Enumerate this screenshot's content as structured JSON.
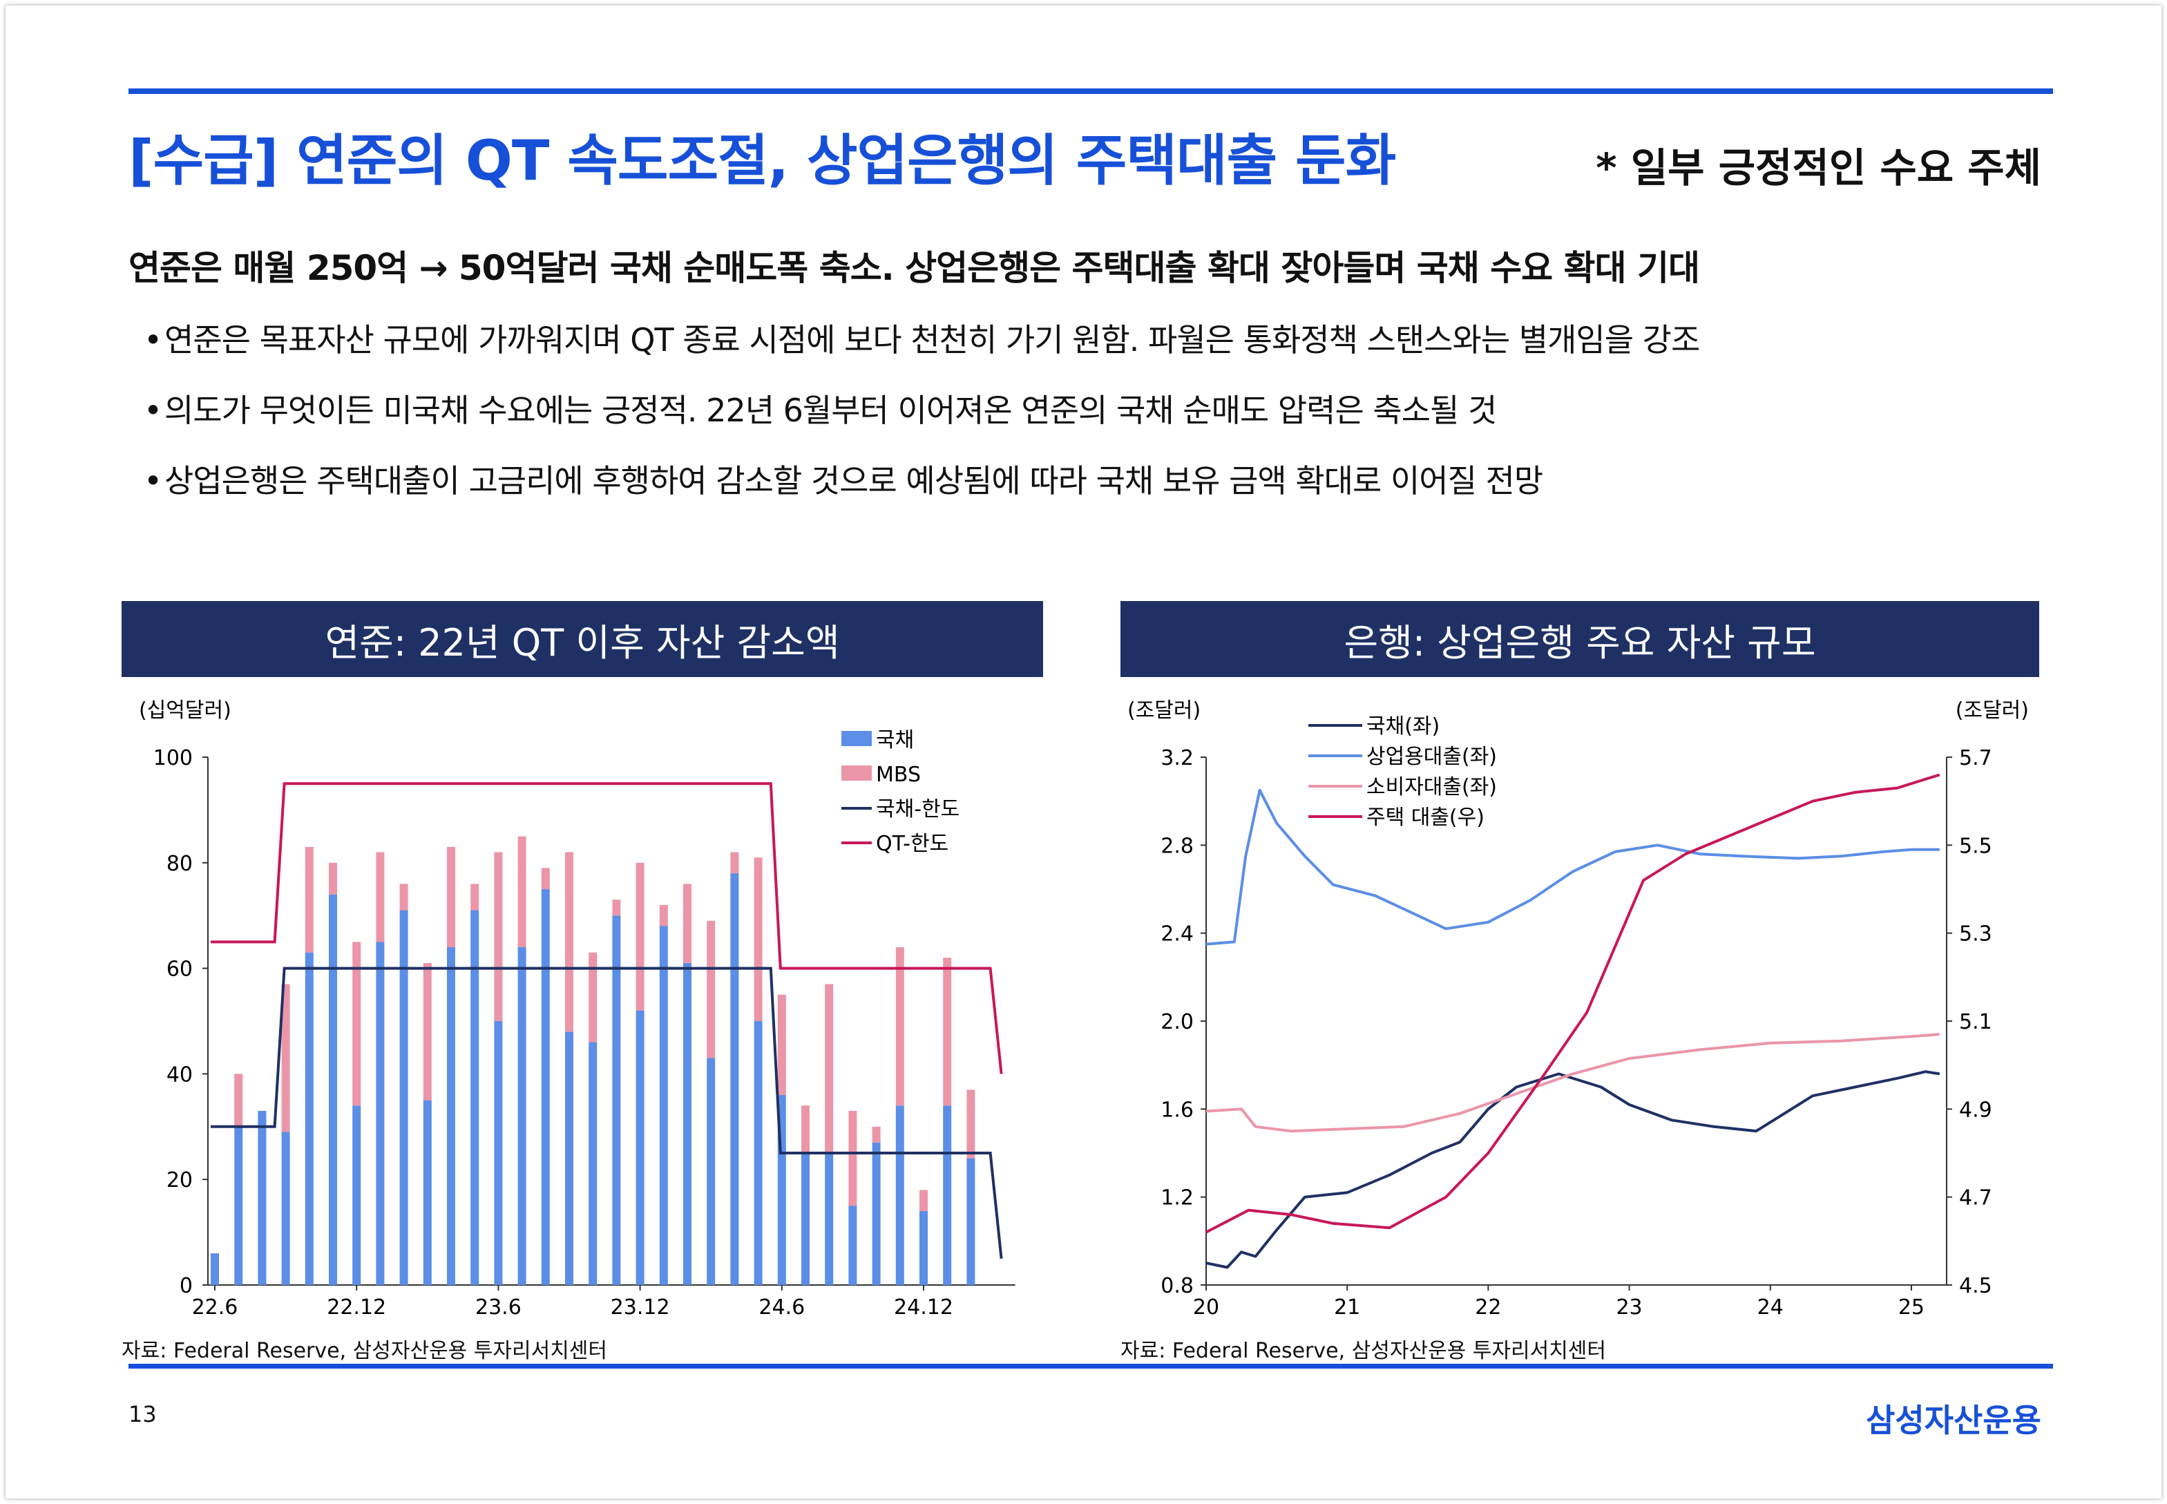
{
  "header": {
    "title": "[수급] 연준의 QT 속도조절, 상업은행의 주택대출 둔화",
    "note": "* 일부 긍정적인 수요 주체"
  },
  "body": {
    "lead": "연준은 매월 250억 → 50억달러 국채 순매도폭 축소. 상업은행은 주택대출 확대 잦아들며 국채 수요 확대 기대",
    "bullets": [
      "연준은 목표자산 규모에 가까워지며 QT 종료 시점에 보다 천천히 가기 원함. 파월은 통화정책 스탠스와는 별개임을 강조",
      "의도가 무엇이든 미국채 수요에는 긍정적. 22년 6월부터 이어져온 연준의 국채 순매도 압력은 축소될 것",
      "상업은행은 주택대출이 고금리에 후행하여 감소할 것으로 예상됨에 따라 국채 보유 금액 확대로 이어질 전망"
    ],
    "bullet_mark": "•"
  },
  "footer": {
    "page": "13",
    "brand": "삼성자산운용"
  },
  "colors": {
    "accent": "#1750d8",
    "header_bg": "#1f3164",
    "treasury": "#5b8ee6",
    "mbs": "#eb96a8",
    "treasury_cap": "#1f3164",
    "qt_cap": "#c8175a",
    "bank_treasury": "#1f3164",
    "bank_commercial": "#5b8ee6",
    "bank_consumer": "#eb96a8",
    "bank_mortgage": "#c8175a"
  },
  "chart_data": [
    {
      "type": "bar",
      "title": "연준: 22년 QT 이후 자산 감소액",
      "ylabel": "(십억달러)",
      "ylim": [
        0,
        100
      ],
      "yticks": [
        0,
        20,
        40,
        60,
        80,
        100
      ],
      "ytick_labels": [
        "0",
        "20",
        "40",
        "60",
        "80",
        "100"
      ],
      "xtick_labels": [
        "22.6",
        "22.12",
        "23.6",
        "23.12",
        "24.6",
        "24.12"
      ],
      "xtick_index": [
        0,
        6,
        12,
        18,
        24,
        30
      ],
      "source": "자료: Federal Reserve, 삼성자산운용 투자리서치센터",
      "categories": [
        "2022-06",
        "2022-07",
        "2022-08",
        "2022-09",
        "2022-10",
        "2022-11",
        "2022-12",
        "2023-01",
        "2023-02",
        "2023-03",
        "2023-04",
        "2023-05",
        "2023-06",
        "2023-07",
        "2023-08",
        "2023-09",
        "2023-10",
        "2023-11",
        "2023-12",
        "2024-01",
        "2024-02",
        "2024-03",
        "2024-04",
        "2024-05",
        "2024-06",
        "2024-07",
        "2024-08",
        "2024-09",
        "2024-10",
        "2024-11",
        "2024-12",
        "2025-01",
        "2025-02",
        "2025-03"
      ],
      "series": [
        {
          "name": "국채",
          "kind": "bar",
          "values": [
            6,
            30,
            33,
            29,
            63,
            74,
            34,
            65,
            71,
            35,
            64,
            71,
            50,
            64,
            75,
            48,
            46,
            70,
            52,
            68,
            61,
            43,
            78,
            50,
            36,
            25,
            25,
            15,
            27,
            34,
            14,
            34,
            24,
            0
          ]
        },
        {
          "name": "MBS",
          "kind": "bar",
          "values": [
            0,
            10,
            0,
            28,
            20,
            6,
            31,
            17,
            5,
            26,
            19,
            5,
            32,
            21,
            4,
            34,
            17,
            3,
            28,
            4,
            15,
            26,
            4,
            31,
            19,
            9,
            32,
            18,
            3,
            30,
            4,
            28,
            13,
            0
          ]
        },
        {
          "name": "국채-한도",
          "kind": "step",
          "values": [
            30,
            30,
            30,
            60,
            60,
            60,
            60,
            60,
            60,
            60,
            60,
            60,
            60,
            60,
            60,
            60,
            60,
            60,
            60,
            60,
            60,
            60,
            60,
            60,
            25,
            25,
            25,
            25,
            25,
            25,
            25,
            25,
            25,
            5
          ]
        },
        {
          "name": "QT-한도",
          "kind": "step",
          "values": [
            65,
            65,
            65,
            95,
            95,
            95,
            95,
            95,
            95,
            95,
            95,
            95,
            95,
            95,
            95,
            95,
            95,
            95,
            95,
            95,
            95,
            95,
            95,
            95,
            60,
            60,
            60,
            60,
            60,
            60,
            60,
            60,
            60,
            40
          ]
        }
      ],
      "legend": [
        "국채",
        "MBS",
        "국채-한도",
        "QT-한도"
      ]
    },
    {
      "type": "line",
      "title": "은행: 상업은행 주요 자산 규모",
      "ylabel_left": "(조달러)",
      "ylabel_right": "(조달러)",
      "ylim_left": [
        0.8,
        3.2
      ],
      "yticks_left": [
        "0.8",
        "1.2",
        "1.6",
        "2.0",
        "2.4",
        "2.8",
        "3.2"
      ],
      "ylim_right": [
        4.5,
        5.7
      ],
      "yticks_right": [
        "4.5",
        "4.7",
        "4.9",
        "5.1",
        "5.3",
        "5.5",
        "5.7"
      ],
      "xlim": [
        2020,
        2025.25
      ],
      "xtick_labels": [
        "20",
        "21",
        "22",
        "23",
        "24",
        "25"
      ],
      "source": "자료: Federal Reserve, 삼성자산운용 투자리서치센터",
      "legend": [
        "국채(좌)",
        "상업용대출(좌)",
        "소비자대출(좌)",
        "주택 대출(우)"
      ],
      "series": [
        {
          "name": "국채(좌)",
          "axis": "left",
          "points": [
            [
              2020,
              0.9
            ],
            [
              2020.15,
              0.88
            ],
            [
              2020.25,
              0.95
            ],
            [
              2020.35,
              0.93
            ],
            [
              2020.5,
              1.05
            ],
            [
              2020.7,
              1.2
            ],
            [
              2021,
              1.22
            ],
            [
              2021.3,
              1.3
            ],
            [
              2021.6,
              1.4
            ],
            [
              2021.8,
              1.45
            ],
            [
              2022,
              1.6
            ],
            [
              2022.2,
              1.7
            ],
            [
              2022.5,
              1.76
            ],
            [
              2022.8,
              1.7
            ],
            [
              2023,
              1.62
            ],
            [
              2023.3,
              1.55
            ],
            [
              2023.6,
              1.52
            ],
            [
              2023.9,
              1.5
            ],
            [
              2024.1,
              1.58
            ],
            [
              2024.3,
              1.66
            ],
            [
              2024.6,
              1.7
            ],
            [
              2024.9,
              1.74
            ],
            [
              2025.1,
              1.77
            ],
            [
              2025.2,
              1.76
            ]
          ]
        },
        {
          "name": "상업용대출(좌)",
          "axis": "left",
          "points": [
            [
              2020,
              2.35
            ],
            [
              2020.2,
              2.36
            ],
            [
              2020.28,
              2.75
            ],
            [
              2020.38,
              3.05
            ],
            [
              2020.5,
              2.9
            ],
            [
              2020.7,
              2.75
            ],
            [
              2020.9,
              2.62
            ],
            [
              2021.2,
              2.57
            ],
            [
              2021.5,
              2.48
            ],
            [
              2021.7,
              2.42
            ],
            [
              2022,
              2.45
            ],
            [
              2022.3,
              2.55
            ],
            [
              2022.6,
              2.68
            ],
            [
              2022.9,
              2.77
            ],
            [
              2023.2,
              2.8
            ],
            [
              2023.5,
              2.76
            ],
            [
              2023.8,
              2.75
            ],
            [
              2024.2,
              2.74
            ],
            [
              2024.5,
              2.75
            ],
            [
              2024.8,
              2.77
            ],
            [
              2025,
              2.78
            ],
            [
              2025.2,
              2.78
            ]
          ]
        },
        {
          "name": "소비자대출(좌)",
          "axis": "left",
          "points": [
            [
              2020,
              1.59
            ],
            [
              2020.25,
              1.6
            ],
            [
              2020.35,
              1.52
            ],
            [
              2020.6,
              1.5
            ],
            [
              2021,
              1.51
            ],
            [
              2021.4,
              1.52
            ],
            [
              2021.8,
              1.58
            ],
            [
              2022.2,
              1.67
            ],
            [
              2022.6,
              1.76
            ],
            [
              2023,
              1.83
            ],
            [
              2023.5,
              1.87
            ],
            [
              2024,
              1.9
            ],
            [
              2024.5,
              1.91
            ],
            [
              2025,
              1.93
            ],
            [
              2025.2,
              1.94
            ]
          ]
        },
        {
          "name": "주택 대출(우)",
          "axis": "right",
          "points": [
            [
              2020,
              4.62
            ],
            [
              2020.3,
              4.67
            ],
            [
              2020.6,
              4.66
            ],
            [
              2020.9,
              4.64
            ],
            [
              2021.3,
              4.63
            ],
            [
              2021.7,
              4.7
            ],
            [
              2022,
              4.8
            ],
            [
              2022.4,
              4.98
            ],
            [
              2022.7,
              5.12
            ],
            [
              2022.9,
              5.27
            ],
            [
              2023.1,
              5.42
            ],
            [
              2023.4,
              5.48
            ],
            [
              2023.7,
              5.52
            ],
            [
              2024,
              5.56
            ],
            [
              2024.3,
              5.6
            ],
            [
              2024.6,
              5.62
            ],
            [
              2024.9,
              5.63
            ],
            [
              2025.1,
              5.65
            ],
            [
              2025.2,
              5.66
            ]
          ]
        }
      ]
    }
  ]
}
